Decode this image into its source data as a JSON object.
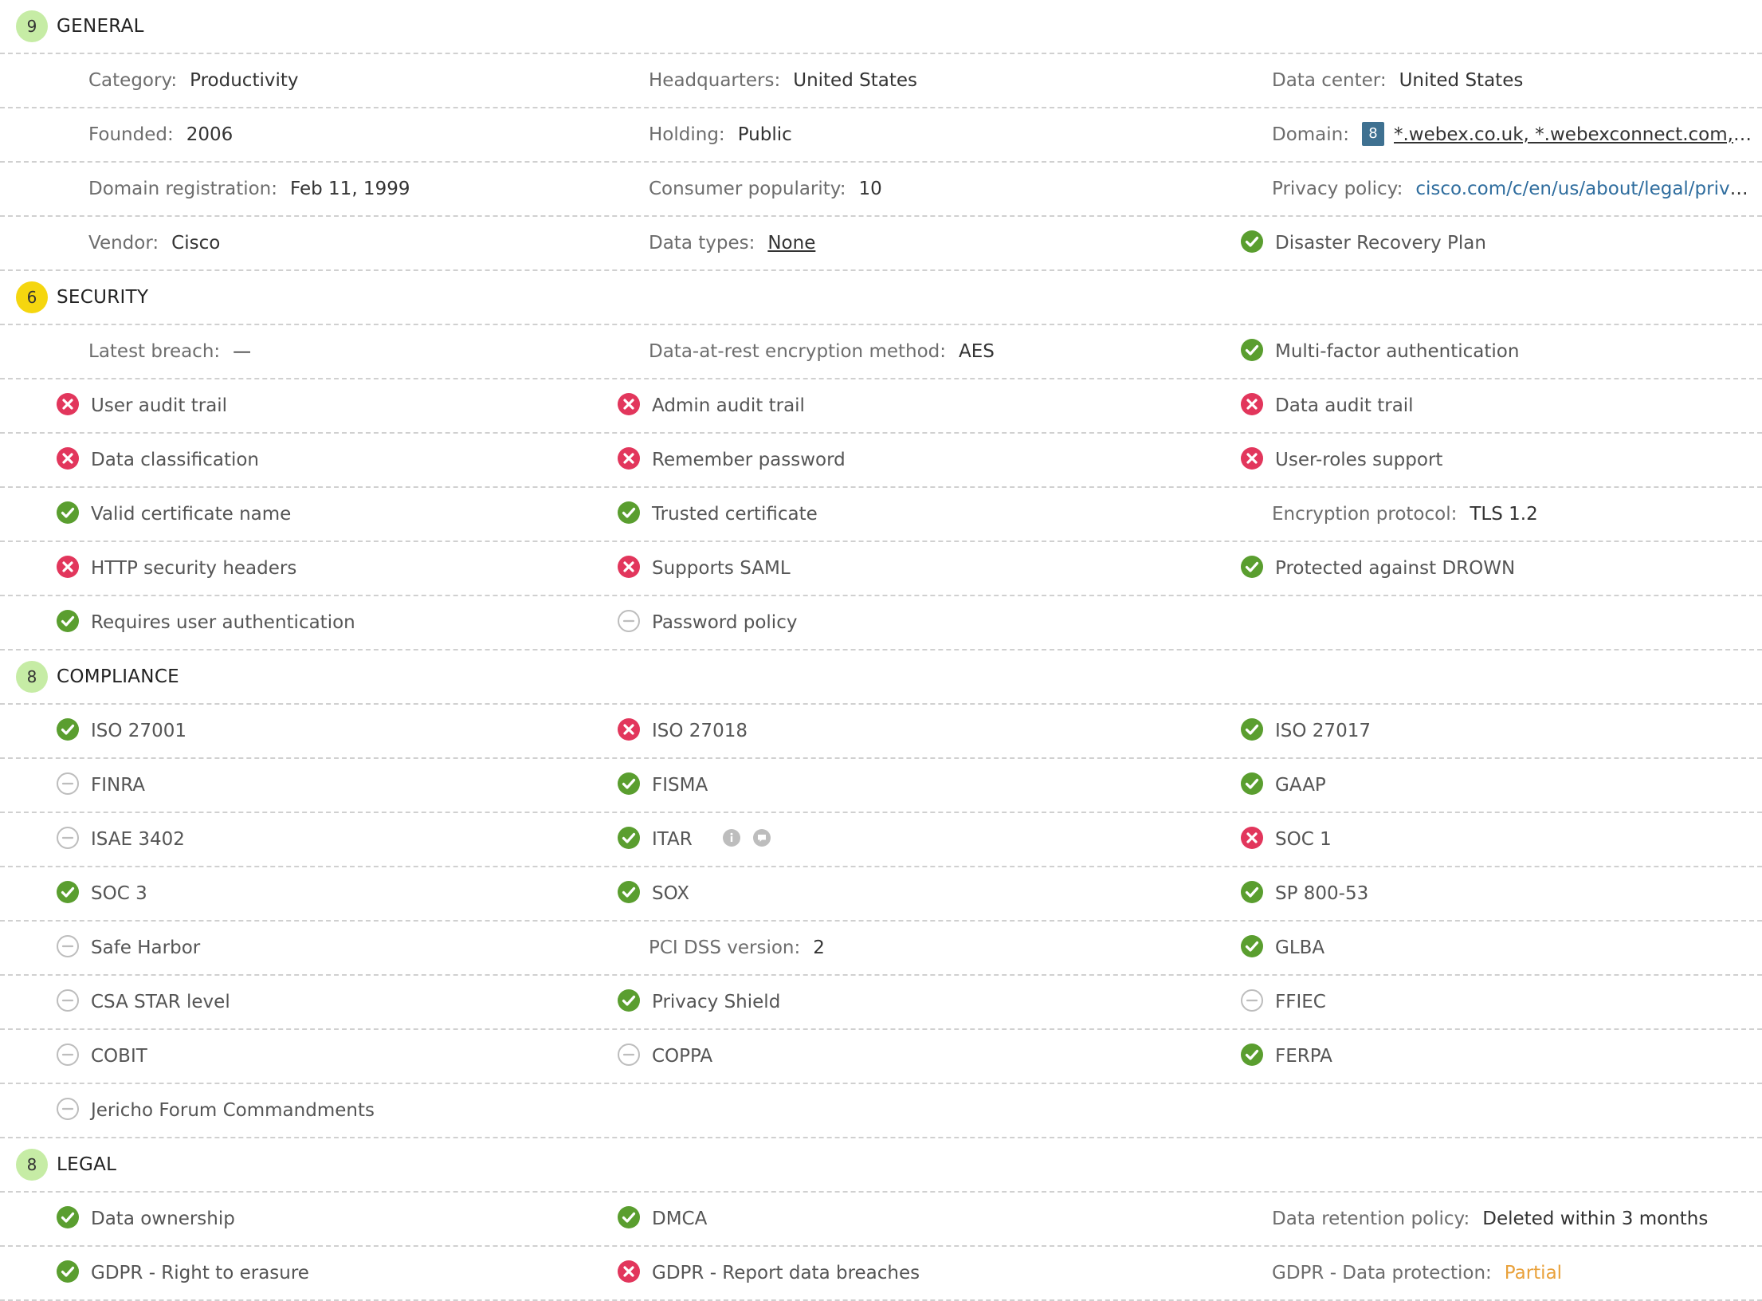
{
  "colors": {
    "check": "#5a9e2f",
    "cross": "#e2365c",
    "na": "#bdbdbd",
    "badge_green": "#c6eca5",
    "badge_yellow": "#f5d60f",
    "link": "#2f6d9e",
    "partial": "#e9a13b"
  },
  "icons": {
    "check": "check-icon",
    "cross": "cross-icon",
    "na": "not-applicable-icon",
    "info": "info-icon",
    "comment": "comment-icon"
  },
  "general": {
    "score": "9",
    "title": "GENERAL",
    "category_label": "Category:",
    "category_value": "Productivity",
    "headquarters_label": "Headquarters:",
    "headquarters_value": "United States",
    "datacenter_label": "Data center:",
    "datacenter_value": "United States",
    "founded_label": "Founded:",
    "founded_value": "2006",
    "holding_label": "Holding:",
    "holding_value": "Public",
    "domain_label": "Domain:",
    "domain_count": "8",
    "domain_value": "*.webex.co.uk, *.webexconnect.com, *.webex.com",
    "domain_registration_label": "Domain registration:",
    "domain_registration_value": "Feb 11, 1999",
    "consumer_popularity_label": "Consumer popularity:",
    "consumer_popularity_value": "10",
    "privacy_policy_label": "Privacy policy:",
    "privacy_policy_value": "cisco.com/c/en/us/about/legal/privacy.html",
    "vendor_label": "Vendor:",
    "vendor_value": "Cisco",
    "data_types_label": "Data types:",
    "data_types_value": "None",
    "disaster_recovery": "Disaster Recovery Plan",
    "disaster_recovery_status": "check"
  },
  "security": {
    "score": "6",
    "title": "SECURITY",
    "latest_breach_label": "Latest breach:",
    "latest_breach_value": "—",
    "encryption_method_label": "Data-at-rest encryption method:",
    "encryption_method_value": "AES",
    "mfa": "Multi-factor authentication",
    "user_audit": "User audit trail",
    "admin_audit": "Admin audit trail",
    "data_audit": "Data audit trail",
    "data_classification": "Data classification",
    "remember_password": "Remember password",
    "user_roles": "User-roles support",
    "valid_cert": "Valid certificate name",
    "trusted_cert": "Trusted certificate",
    "encryption_protocol_label": "Encryption protocol:",
    "encryption_protocol_value": "TLS 1.2",
    "http_headers": "HTTP security headers",
    "saml": "Supports SAML",
    "drown": "Protected against DROWN",
    "requires_auth": "Requires user authentication",
    "password_policy": "Password policy"
  },
  "compliance": {
    "score": "8",
    "title": "COMPLIANCE",
    "iso27001": "ISO 27001",
    "iso27018": "ISO 27018",
    "iso27017": "ISO 27017",
    "finra": "FINRA",
    "fisma": "FISMA",
    "gaap": "GAAP",
    "isae3402": "ISAE 3402",
    "itar": "ITAR",
    "soc1": "SOC 1",
    "soc3": "SOC 3",
    "sox": "SOX",
    "sp80053": "SP 800-53",
    "safe_harbor": "Safe Harbor",
    "pci_label": "PCI DSS version:",
    "pci_value": "2",
    "glba": "GLBA",
    "csa_star": "CSA STAR level",
    "privacy_shield": "Privacy Shield",
    "ffiec": "FFIEC",
    "cobit": "COBIT",
    "coppa": "COPPA",
    "ferpa": "FERPA",
    "jericho": "Jericho Forum Commandments"
  },
  "legal": {
    "score": "8",
    "title": "LEGAL",
    "data_ownership": "Data ownership",
    "dmca": "DMCA",
    "retention_label": "Data retention policy:",
    "retention_value": "Deleted within 3 months",
    "gdpr_erasure": "GDPR - Right to erasure",
    "gdpr_breaches": "GDPR - Report data breaches",
    "gdpr_protection_label": "GDPR - Data protection:",
    "gdpr_protection_value": "Partial"
  }
}
